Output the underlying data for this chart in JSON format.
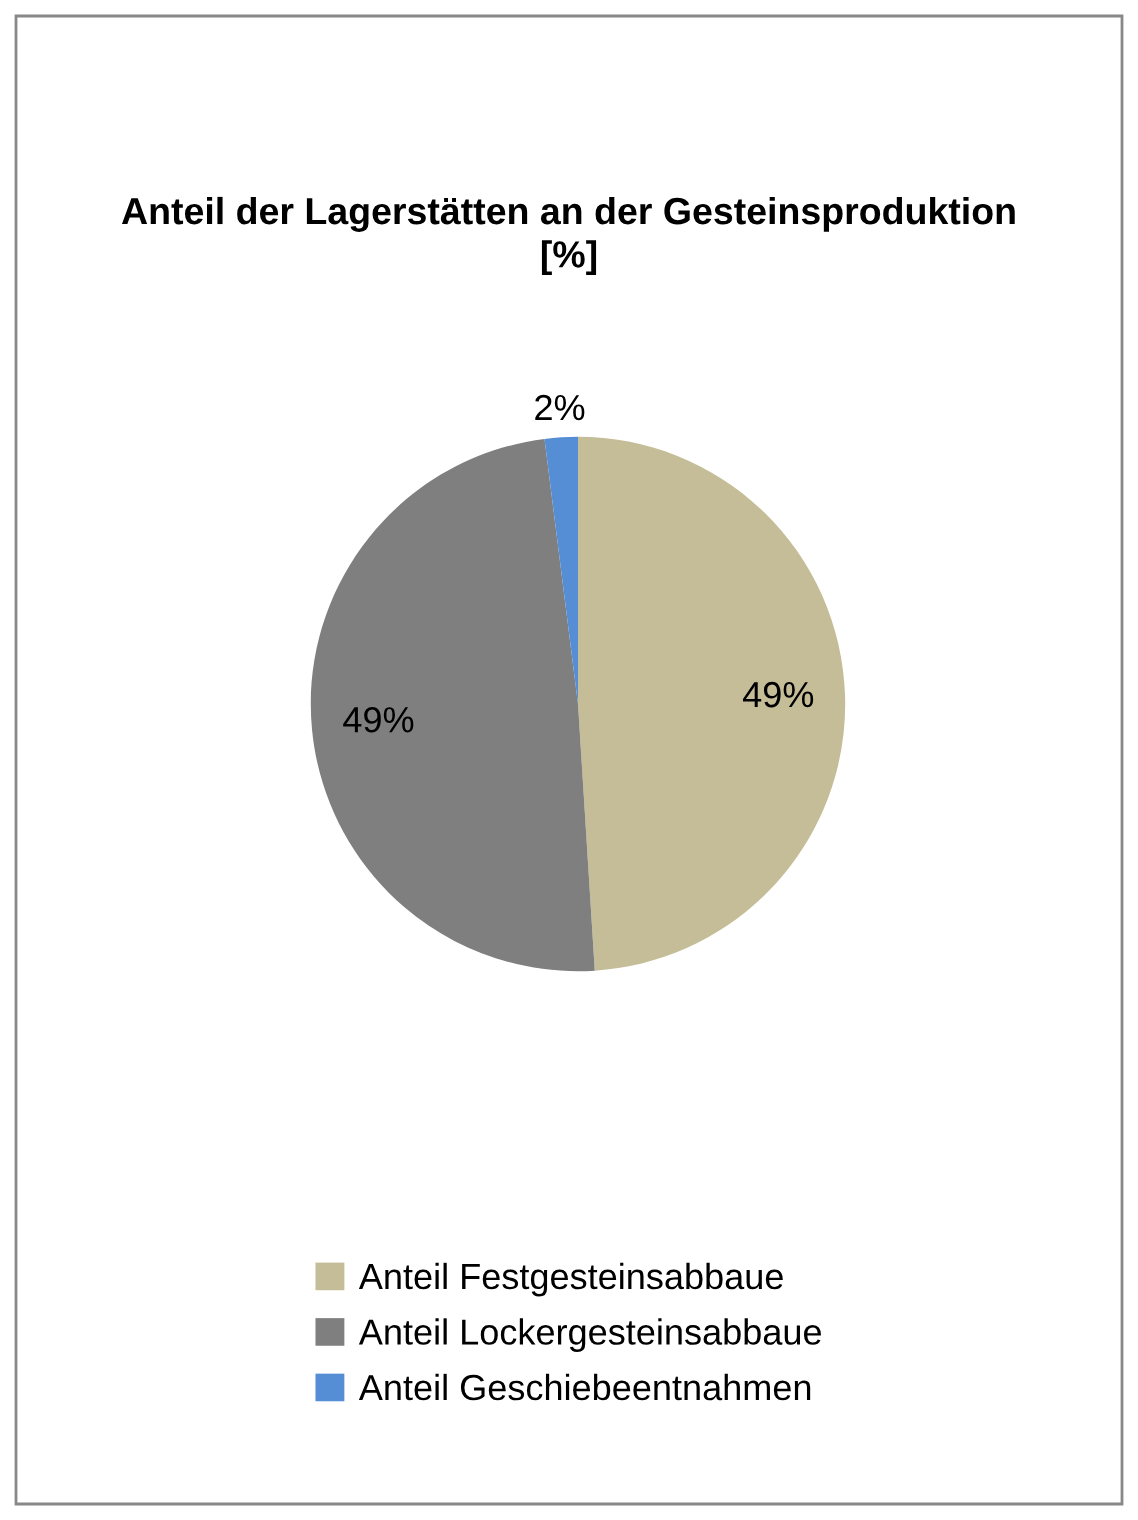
{
  "chart_data": {
    "type": "pie",
    "title": "Anteil der Lagerstätten an der Gesteinsproduktion [%]",
    "categories": [
      "Anteil Festgesteinsabbaue",
      "Anteil Lockergesteinsabbaue",
      "Anteil Geschiebeentnahmen"
    ],
    "values": [
      49,
      49,
      2
    ],
    "colors": [
      "#c4bd97",
      "#7f7f7f",
      "#558ed5"
    ],
    "value_labels": [
      "49%",
      "49%",
      "2%"
    ],
    "legend": "bottom"
  }
}
